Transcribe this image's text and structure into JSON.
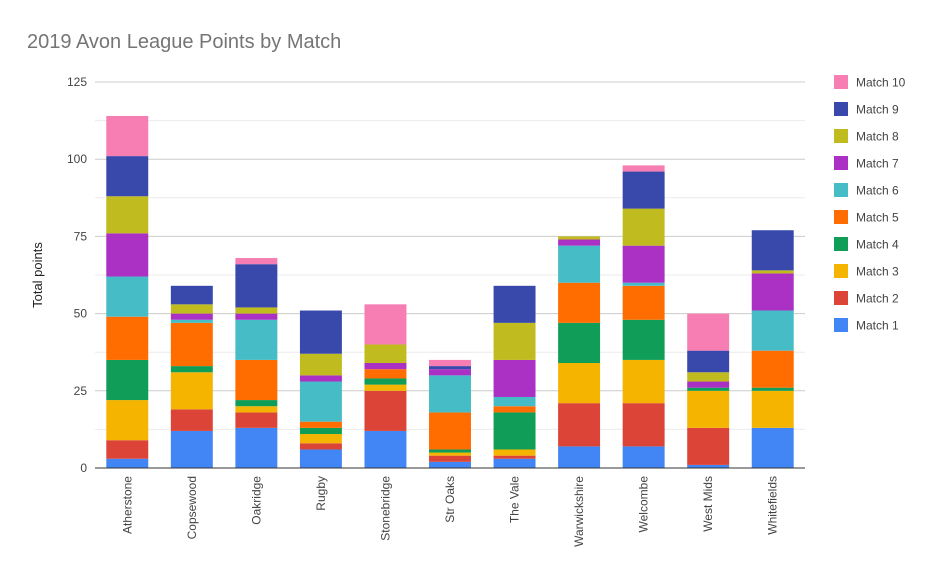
{
  "chart_data": {
    "type": "bar",
    "stacked": true,
    "title": "2019 Avon League Points by Match",
    "xlabel": "",
    "ylabel": "Total points",
    "ylim": [
      0,
      125
    ],
    "yticks": [
      0,
      25,
      50,
      75,
      100,
      125
    ],
    "grid": true,
    "legend_position": "right",
    "categories": [
      "Atherstone",
      "Copsewood",
      "Oakridge",
      "Rugby",
      "Stonebridge",
      "Str Oaks",
      "The Vale",
      "Warwickshire",
      "Welcombe",
      "West Mids",
      "Whitefields"
    ],
    "series": [
      {
        "name": "Match 1",
        "color": "#4285f4",
        "values": [
          3,
          12,
          13,
          6,
          12,
          2,
          3,
          7,
          7,
          1,
          13
        ]
      },
      {
        "name": "Match 2",
        "color": "#db4437",
        "values": [
          6,
          7,
          5,
          2,
          13,
          2,
          1,
          14,
          14,
          12,
          0
        ]
      },
      {
        "name": "Match 3",
        "color": "#f4b400",
        "values": [
          13,
          12,
          2,
          3,
          2,
          1,
          2,
          13,
          14,
          12,
          12
        ]
      },
      {
        "name": "Match 4",
        "color": "#0f9d58",
        "values": [
          13,
          2,
          2,
          2,
          2,
          1,
          12,
          13,
          13,
          1,
          1
        ]
      },
      {
        "name": "Match 5",
        "color": "#ff6d00",
        "values": [
          14,
          14,
          13,
          2,
          3,
          12,
          2,
          13,
          11,
          0,
          12
        ]
      },
      {
        "name": "Match 6",
        "color": "#46bdc6",
        "values": [
          13,
          1,
          13,
          13,
          0,
          12,
          3,
          12,
          1,
          0,
          13
        ]
      },
      {
        "name": "Match 7",
        "color": "#ab30c4",
        "values": [
          14,
          2,
          2,
          2,
          2,
          2,
          12,
          2,
          12,
          2,
          12
        ]
      },
      {
        "name": "Match 8",
        "color": "#c0bb1f",
        "values": [
          12,
          3,
          2,
          7,
          6,
          0,
          12,
          1,
          12,
          3,
          1
        ]
      },
      {
        "name": "Match 9",
        "color": "#3949ab",
        "values": [
          13,
          6,
          14,
          14,
          0,
          1,
          12,
          0,
          12,
          7,
          13
        ]
      },
      {
        "name": "Match 10",
        "color": "#f77eb3",
        "values": [
          13,
          0,
          2,
          0,
          13,
          2,
          0,
          0,
          2,
          12,
          0
        ]
      }
    ]
  }
}
